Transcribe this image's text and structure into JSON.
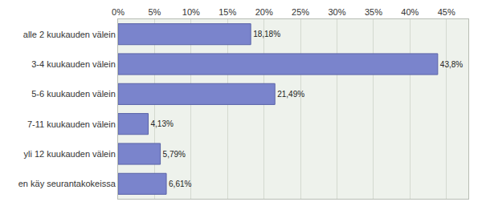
{
  "chart_data": {
    "type": "bar",
    "orientation": "horizontal",
    "categories": [
      "alle 2 kuukauden välein",
      "3-4 kuukauden välein",
      "5-6 kuukauden välein",
      "7-11 kuukauden välein",
      "yli 12 kuukauden välein",
      "en käy seurantakokeissa"
    ],
    "values": [
      18.18,
      43.8,
      21.49,
      4.13,
      5.79,
      6.61
    ],
    "value_labels": [
      "18,18%",
      "43,8%",
      "21,49%",
      "4,13%",
      "5,79%",
      "6,61%"
    ],
    "data_labels": true,
    "color": "#7a84cc",
    "xlim": [
      0,
      48
    ],
    "xticks": [
      {
        "value": 0,
        "label": "0%"
      },
      {
        "value": 5,
        "label": "5%"
      },
      {
        "value": 10,
        "label": "10%"
      },
      {
        "value": 15,
        "label": "15%"
      },
      {
        "value": 20,
        "label": "20%"
      },
      {
        "value": 25,
        "label": "25%"
      },
      {
        "value": 30,
        "label": "30%"
      },
      {
        "value": 35,
        "label": "35%"
      },
      {
        "value": 40,
        "label": "40%"
      },
      {
        "value": 45,
        "label": "45%"
      }
    ],
    "grid": true
  }
}
